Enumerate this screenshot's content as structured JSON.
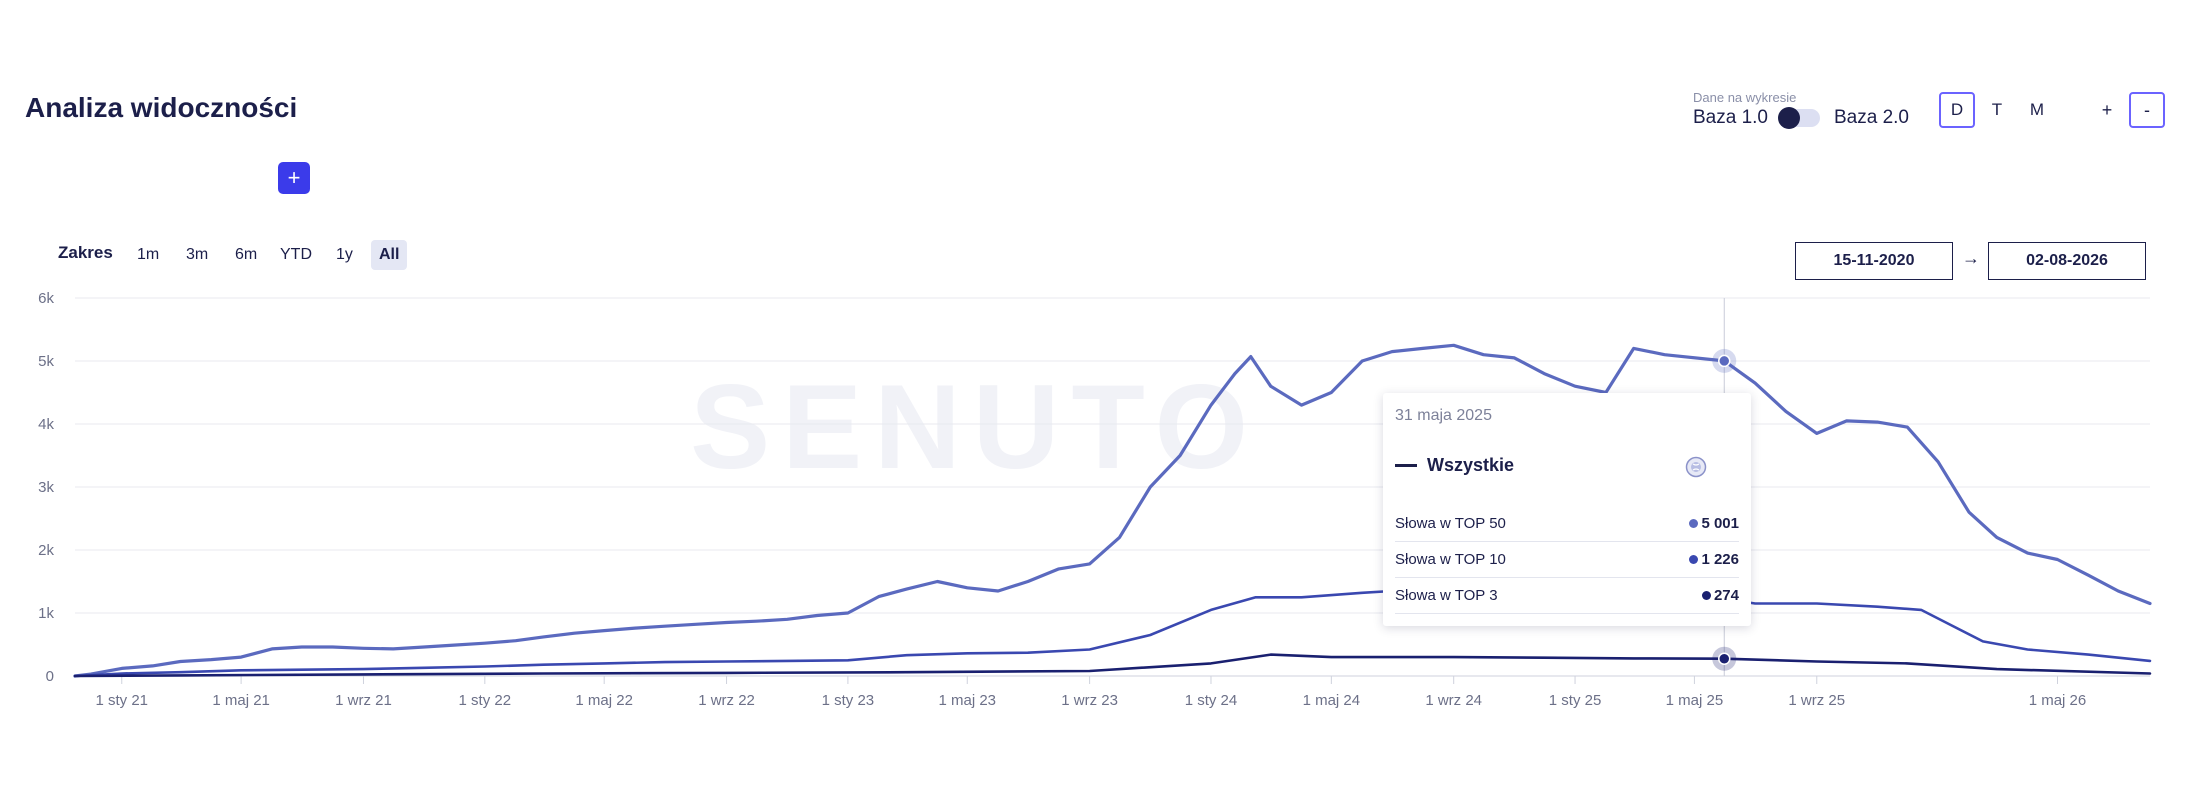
{
  "header": {
    "title": "Analiza widoczności",
    "add_label": "+"
  },
  "database_toggle": {
    "caption": "Dane na wykresie",
    "left_label": "Baza 1.0",
    "right_label": "Baza 2.0"
  },
  "granularity": {
    "options": [
      "D",
      "T",
      "M"
    ],
    "selected": "D"
  },
  "zoom": {
    "in_label": "+",
    "out_label": "-"
  },
  "range": {
    "label": "Zakres",
    "options": [
      "1m",
      "3m",
      "6m",
      "YTD",
      "1y",
      "All"
    ],
    "selected": "All",
    "from": "15-11-2020",
    "arrow": "→",
    "to": "02-08-2026"
  },
  "colors": {
    "top50": "#5b6abf",
    "top10": "#3a48b0",
    "top3": "#1a2070",
    "accent": "#3b3bea"
  },
  "tooltip": {
    "date": "31 maja 2025",
    "series_name": "Wszystkie",
    "icon": "globe-icon",
    "rows": [
      {
        "label": "Słowa w TOP 50",
        "value": "5 001",
        "color": "#5b6abf"
      },
      {
        "label": "Słowa w TOP 10",
        "value": "1 226",
        "color": "#3a48b0"
      },
      {
        "label": "Słowa w TOP 3",
        "value": "274",
        "color": "#1a2070"
      }
    ]
  },
  "chart_data": {
    "type": "line",
    "xlim": [
      "2020-11-15",
      "2026-08-02"
    ],
    "ylim": [
      0,
      6000
    ],
    "y_ticks": [
      0,
      1000,
      2000,
      3000,
      4000,
      5000,
      6000
    ],
    "y_tick_labels": [
      "0",
      "1k",
      "2k",
      "3k",
      "4k",
      "5k",
      "6k"
    ],
    "x_ticks": [
      {
        "date": "2021-01-01",
        "label": "1 sty 21"
      },
      {
        "date": "2021-05-01",
        "label": "1 maj 21"
      },
      {
        "date": "2021-09-01",
        "label": "1 wrz 21"
      },
      {
        "date": "2022-01-01",
        "label": "1 sty 22"
      },
      {
        "date": "2022-05-01",
        "label": "1 maj 22"
      },
      {
        "date": "2022-09-01",
        "label": "1 wrz 22"
      },
      {
        "date": "2023-01-01",
        "label": "1 sty 23"
      },
      {
        "date": "2023-05-01",
        "label": "1 maj 23"
      },
      {
        "date": "2023-09-01",
        "label": "1 wrz 23"
      },
      {
        "date": "2024-01-01",
        "label": "1 sty 24"
      },
      {
        "date": "2024-05-01",
        "label": "1 maj 24"
      },
      {
        "date": "2024-09-01",
        "label": "1 wrz 24"
      },
      {
        "date": "2025-01-01",
        "label": "1 sty 25"
      },
      {
        "date": "2025-05-01",
        "label": "1 maj 25"
      },
      {
        "date": "2025-09-01",
        "label": "1 wrz 25"
      },
      {
        "date": "2026-05-01",
        "label": "1 maj 26"
      }
    ],
    "grid": true,
    "watermark": "SENUTO",
    "highlight_date": "2025-05-31",
    "series": [
      {
        "name": "Słowa w TOP 50",
        "color": "#5b6abf",
        "points": [
          [
            "2020-11-15",
            0
          ],
          [
            "2020-12-01",
            30
          ],
          [
            "2021-01-01",
            120
          ],
          [
            "2021-02-01",
            160
          ],
          [
            "2021-03-01",
            230
          ],
          [
            "2021-04-01",
            260
          ],
          [
            "2021-05-01",
            300
          ],
          [
            "2021-06-01",
            430
          ],
          [
            "2021-07-01",
            460
          ],
          [
            "2021-08-01",
            460
          ],
          [
            "2021-09-01",
            440
          ],
          [
            "2021-10-01",
            430
          ],
          [
            "2021-11-01",
            460
          ],
          [
            "2021-12-01",
            490
          ],
          [
            "2022-01-01",
            520
          ],
          [
            "2022-02-01",
            560
          ],
          [
            "2022-03-01",
            620
          ],
          [
            "2022-04-01",
            680
          ],
          [
            "2022-05-01",
            720
          ],
          [
            "2022-06-01",
            760
          ],
          [
            "2022-07-01",
            790
          ],
          [
            "2022-08-01",
            820
          ],
          [
            "2022-09-01",
            850
          ],
          [
            "2022-10-01",
            870
          ],
          [
            "2022-11-01",
            900
          ],
          [
            "2022-12-01",
            960
          ],
          [
            "2023-01-01",
            1000
          ],
          [
            "2023-02-01",
            1260
          ],
          [
            "2023-03-01",
            1380
          ],
          [
            "2023-04-01",
            1500
          ],
          [
            "2023-05-01",
            1400
          ],
          [
            "2023-06-01",
            1350
          ],
          [
            "2023-07-01",
            1500
          ],
          [
            "2023-08-01",
            1700
          ],
          [
            "2023-09-01",
            1780
          ],
          [
            "2023-10-01",
            2200
          ],
          [
            "2023-11-01",
            3000
          ],
          [
            "2023-12-01",
            3500
          ],
          [
            "2024-01-01",
            4300
          ],
          [
            "2024-01-25",
            4800
          ],
          [
            "2024-02-10",
            5070
          ],
          [
            "2024-03-01",
            4600
          ],
          [
            "2024-04-01",
            4300
          ],
          [
            "2024-05-01",
            4500
          ],
          [
            "2024-06-01",
            5000
          ],
          [
            "2024-07-01",
            5150
          ],
          [
            "2024-08-01",
            5200
          ],
          [
            "2024-09-01",
            5250
          ],
          [
            "2024-10-01",
            5100
          ],
          [
            "2024-11-01",
            5050
          ],
          [
            "2024-12-01",
            4800
          ],
          [
            "2025-01-01",
            4600
          ],
          [
            "2025-02-01",
            4500
          ],
          [
            "2025-03-01",
            5200
          ],
          [
            "2025-04-01",
            5100
          ],
          [
            "2025-05-31",
            5001
          ],
          [
            "2025-07-01",
            4650
          ],
          [
            "2025-08-01",
            4200
          ],
          [
            "2025-09-01",
            3850
          ],
          [
            "2025-10-01",
            4050
          ],
          [
            "2025-11-01",
            4030
          ],
          [
            "2025-12-01",
            3950
          ],
          [
            "2026-01-01",
            3400
          ],
          [
            "2026-02-01",
            2600
          ],
          [
            "2026-03-01",
            2200
          ],
          [
            "2026-04-01",
            1950
          ],
          [
            "2026-05-01",
            1850
          ],
          [
            "2026-06-01",
            1600
          ],
          [
            "2026-07-01",
            1350
          ],
          [
            "2026-08-02",
            1150
          ]
        ]
      },
      {
        "name": "Słowa w TOP 10",
        "color": "#3a48b0",
        "points": [
          [
            "2020-11-15",
            0
          ],
          [
            "2021-01-01",
            40
          ],
          [
            "2021-03-01",
            60
          ],
          [
            "2021-05-01",
            90
          ],
          [
            "2021-07-01",
            100
          ],
          [
            "2021-09-01",
            110
          ],
          [
            "2021-11-01",
            130
          ],
          [
            "2022-01-01",
            150
          ],
          [
            "2022-03-01",
            180
          ],
          [
            "2022-05-01",
            200
          ],
          [
            "2022-07-01",
            220
          ],
          [
            "2022-09-01",
            230
          ],
          [
            "2022-11-01",
            240
          ],
          [
            "2023-01-01",
            250
          ],
          [
            "2023-03-01",
            330
          ],
          [
            "2023-05-01",
            360
          ],
          [
            "2023-07-01",
            370
          ],
          [
            "2023-09-01",
            420
          ],
          [
            "2023-11-01",
            650
          ],
          [
            "2024-01-01",
            1050
          ],
          [
            "2024-02-15",
            1250
          ],
          [
            "2024-04-01",
            1250
          ],
          [
            "2024-06-01",
            1320
          ],
          [
            "2024-08-01",
            1380
          ],
          [
            "2024-10-01",
            1350
          ],
          [
            "2024-12-01",
            1250
          ],
          [
            "2025-02-01",
            1200
          ],
          [
            "2025-03-15",
            1300
          ],
          [
            "2025-05-31",
            1226
          ],
          [
            "2025-07-01",
            1150
          ],
          [
            "2025-09-01",
            1150
          ],
          [
            "2025-11-01",
            1100
          ],
          [
            "2025-12-15",
            1050
          ],
          [
            "2026-01-15",
            800
          ],
          [
            "2026-02-15",
            550
          ],
          [
            "2026-04-01",
            420
          ],
          [
            "2026-06-01",
            340
          ],
          [
            "2026-08-02",
            240
          ]
        ]
      },
      {
        "name": "Słowa w TOP 3",
        "color": "#1a2070",
        "points": [
          [
            "2020-11-15",
            0
          ],
          [
            "2021-03-01",
            10
          ],
          [
            "2021-09-01",
            25
          ],
          [
            "2022-03-01",
            40
          ],
          [
            "2022-09-01",
            50
          ],
          [
            "2023-03-01",
            60
          ],
          [
            "2023-09-01",
            80
          ],
          [
            "2024-01-01",
            200
          ],
          [
            "2024-03-01",
            340
          ],
          [
            "2024-05-01",
            300
          ],
          [
            "2024-09-01",
            300
          ],
          [
            "2024-12-01",
            290
          ],
          [
            "2025-03-01",
            280
          ],
          [
            "2025-05-31",
            274
          ],
          [
            "2025-09-01",
            230
          ],
          [
            "2025-12-01",
            200
          ],
          [
            "2026-03-01",
            110
          ],
          [
            "2026-08-02",
            40
          ]
        ]
      }
    ]
  }
}
